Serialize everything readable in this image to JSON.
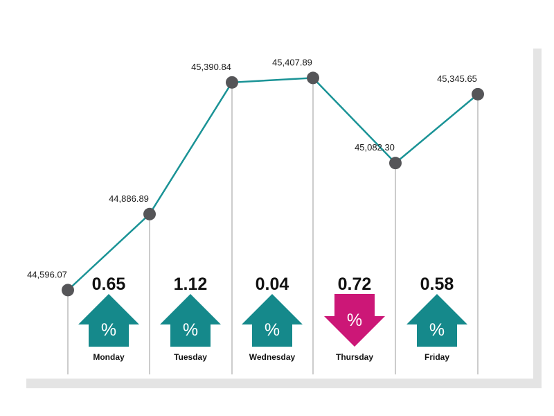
{
  "chart_data": {
    "type": "line",
    "categories": [
      "Monday",
      "Tuesday",
      "Wednesday",
      "Thursday",
      "Friday"
    ],
    "index_points": [
      44596.07,
      44886.89,
      45390.84,
      45407.89,
      45082.3,
      45345.65
    ],
    "index_labels": [
      "44,596.07",
      "44,886.89",
      "45,390.84",
      "45,407.89",
      "45,082.30",
      "45,345.65"
    ],
    "changes": [
      {
        "day": "Monday",
        "percent": "0.65",
        "direction": "up",
        "sign": "%"
      },
      {
        "day": "Tuesday",
        "percent": "1.12",
        "direction": "up",
        "sign": "%"
      },
      {
        "day": "Wednesday",
        "percent": "0.04",
        "direction": "up",
        "sign": "%"
      },
      {
        "day": "Thursday",
        "percent": "0.72",
        "direction": "down",
        "sign": "%"
      },
      {
        "day": "Friday",
        "percent": "0.58",
        "direction": "up",
        "sign": "%"
      }
    ],
    "ylim": [
      44300,
      45600
    ],
    "grid": false,
    "colors": {
      "line": "#1a9396",
      "marker": "#555558",
      "up": "#15898b",
      "down": "#cc1777",
      "guide": "#9a9a9a",
      "shadow": "#e4e4e4"
    }
  }
}
